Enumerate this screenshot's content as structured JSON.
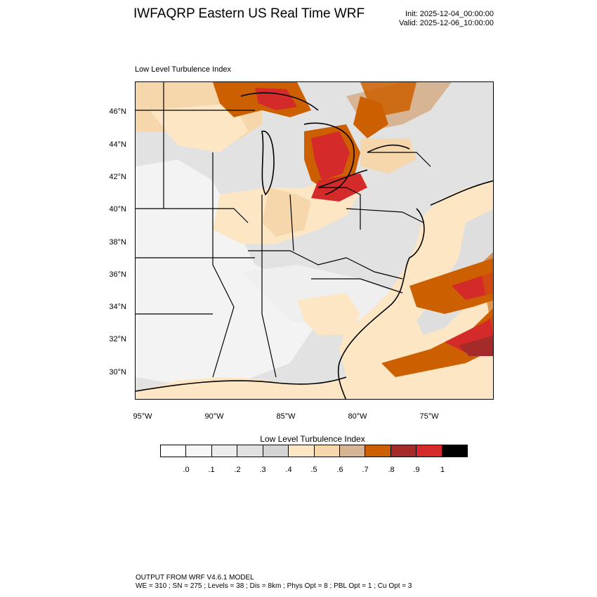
{
  "header": {
    "title": "IWFAQRP Eastern US Real Time WRF",
    "init": "Init: 2025-12-04_00:00:00",
    "valid": "Valid: 2025-12-06_10:00:00"
  },
  "map": {
    "field_label": "Low Level Turbulence Index",
    "lat_ticks": [
      "46°N",
      "44°N",
      "42°N",
      "40°N",
      "38°N",
      "36°N",
      "34°N",
      "32°N",
      "30°N"
    ],
    "lon_ticks": [
      "95°W",
      "90°W",
      "85°W",
      "80°W",
      "75°W"
    ],
    "land_base_color": "#e2e2e2",
    "ocean_color": "#fde6c4"
  },
  "legend": {
    "title": "Low Level Turbulence Index",
    "colors": [
      "#ffffff",
      "#f7f7f7",
      "#ededed",
      "#e1e1e1",
      "#d4d4d4",
      "#fde6c4",
      "#f6d7ac",
      "#d6b494",
      "#cc5f00",
      "#a52a2a",
      "#d42a2a",
      "#000000"
    ],
    "labels": [
      ".0",
      ".1",
      ".2",
      ".3",
      ".4",
      ".5",
      ".6",
      ".7",
      ".8",
      ".9",
      "1"
    ]
  },
  "footer": {
    "line1": "OUTPUT FROM WRF V4.6.1 MODEL",
    "line2": "WE = 310 ; SN = 275 ; Levels = 38 ; Dis = 8km ; Phys Opt = 8 ; PBL Opt = 1 ; Cu Opt = 3"
  }
}
